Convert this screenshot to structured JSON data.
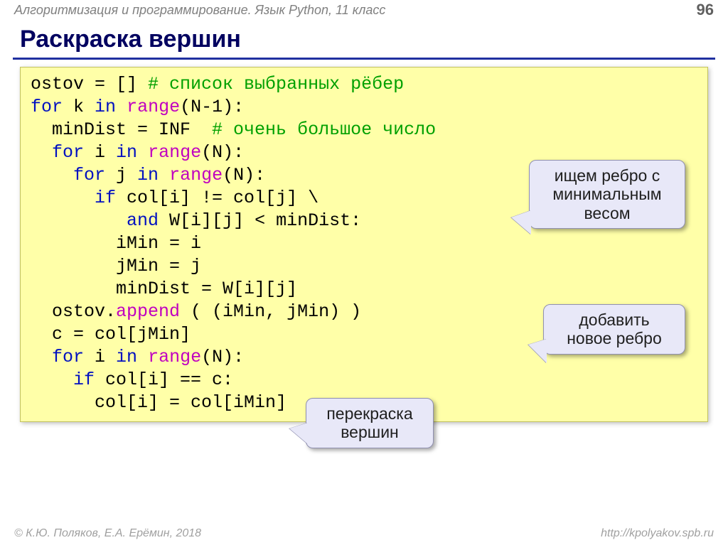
{
  "header": {
    "course": "Алгоритмизация и программирование. Язык Python, 11 класс",
    "page": "96"
  },
  "title": "Раскраска вершин",
  "code": {
    "lines": [
      {
        "segs": [
          [
            "",
            "ostov = [] "
          ],
          [
            "cm",
            "# список выбранных рёбер"
          ]
        ]
      },
      {
        "segs": [
          [
            "kw",
            "for"
          ],
          [
            "",
            " k "
          ],
          [
            "kw",
            "in"
          ],
          [
            "",
            " "
          ],
          [
            "fn",
            "range"
          ],
          [
            "",
            "(N-1):"
          ]
        ]
      },
      {
        "segs": [
          [
            "",
            "  minDist = INF  "
          ],
          [
            "cm",
            "# очень большое число"
          ]
        ]
      },
      {
        "segs": [
          [
            "",
            "  "
          ],
          [
            "kw",
            "for"
          ],
          [
            "",
            " i "
          ],
          [
            "kw",
            "in"
          ],
          [
            "",
            " "
          ],
          [
            "fn",
            "range"
          ],
          [
            "",
            "(N):"
          ]
        ]
      },
      {
        "segs": [
          [
            "",
            "    "
          ],
          [
            "kw",
            "for"
          ],
          [
            "",
            " j "
          ],
          [
            "kw",
            "in"
          ],
          [
            "",
            " "
          ],
          [
            "fn",
            "range"
          ],
          [
            "",
            "(N):"
          ]
        ]
      },
      {
        "segs": [
          [
            "",
            "      "
          ],
          [
            "kw",
            "if"
          ],
          [
            "",
            " col[i] != col[j] \\"
          ]
        ]
      },
      {
        "segs": [
          [
            "",
            "         "
          ],
          [
            "kw",
            "and"
          ],
          [
            "",
            " W[i][j] < minDist:"
          ]
        ]
      },
      {
        "segs": [
          [
            "",
            "        iMin = i"
          ]
        ]
      },
      {
        "segs": [
          [
            "",
            "        jMin = j"
          ]
        ]
      },
      {
        "segs": [
          [
            "",
            "        minDist = W[i][j]"
          ]
        ]
      },
      {
        "segs": [
          [
            "",
            "  ostov."
          ],
          [
            "fn",
            "append"
          ],
          [
            "",
            " ( (iMin, jMin) )"
          ]
        ]
      },
      {
        "segs": [
          [
            "",
            "  c = col[jMin]"
          ]
        ]
      },
      {
        "segs": [
          [
            "",
            "  "
          ],
          [
            "kw",
            "for"
          ],
          [
            "",
            " i "
          ],
          [
            "kw",
            "in"
          ],
          [
            "",
            " "
          ],
          [
            "fn",
            "range"
          ],
          [
            "",
            "(N):"
          ]
        ]
      },
      {
        "segs": [
          [
            "",
            "    "
          ],
          [
            "kw",
            "if"
          ],
          [
            "",
            " col[i] == c:"
          ]
        ]
      },
      {
        "segs": [
          [
            "",
            "      col[i] = col[iMin]"
          ]
        ]
      }
    ]
  },
  "callouts": {
    "c1": "ищем ребро с минимальным весом",
    "c2": "добавить новое ребро",
    "c3": "перекраска вершин"
  },
  "footer": {
    "copyright": "© К.Ю. Поляков, Е.А. Ерёмин, 2018",
    "url": "http://kpolyakov.spb.ru"
  },
  "colors": {
    "keyword": "#0010c0",
    "function": "#c000c0",
    "comment": "#00a000",
    "code_bg": "#ffffa8",
    "callout_bg": "#e8e8f8",
    "title": "#000060",
    "rule": "#2030a0"
  }
}
